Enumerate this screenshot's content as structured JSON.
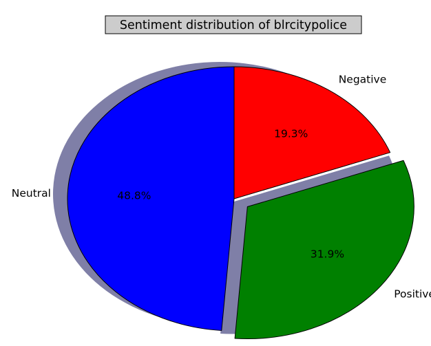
{
  "chart_data": {
    "type": "pie",
    "title": "Sentiment distribution of blrcitypolice",
    "slices": [
      {
        "label": "Negative",
        "value": 19.3,
        "pct_label": "19.3%",
        "color": "#ff0000",
        "explode": 0
      },
      {
        "label": "Positive",
        "value": 31.9,
        "pct_label": "31.9%",
        "color": "#008000",
        "explode": 0.1
      },
      {
        "label": "Neutral",
        "value": 48.8,
        "pct_label": "48.8%",
        "color": "#0000ff",
        "explode": 0
      }
    ],
    "start_angle": 90,
    "direction": "clockwise",
    "shadow": true,
    "shadow_color": "#000050"
  }
}
